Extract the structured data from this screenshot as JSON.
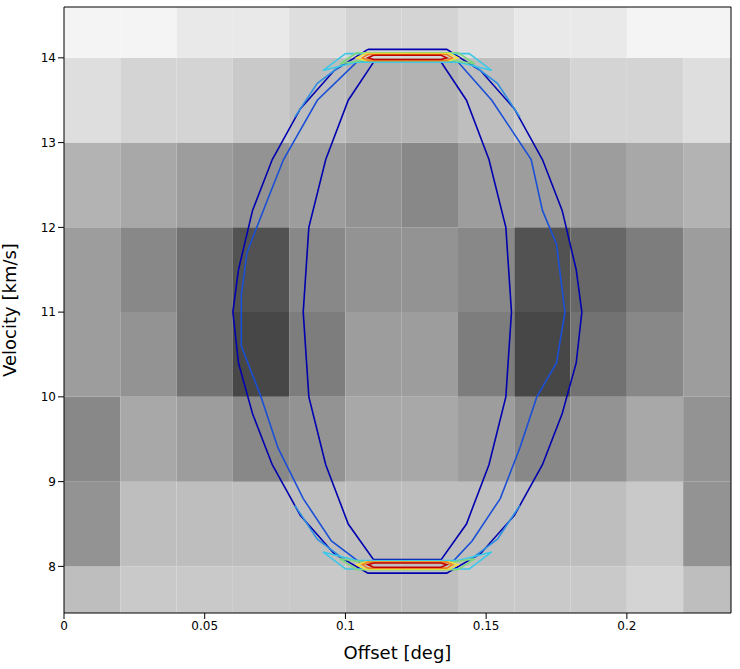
{
  "chart_data": {
    "type": "contour",
    "x_label": "Offset [deg]",
    "y_label": "Velocity [km/s]",
    "xlim": [
      0,
      0.237
    ],
    "ylim": [
      7.45,
      14.6
    ],
    "xticks": [
      0,
      0.05,
      0.1,
      0.15,
      0.2
    ],
    "yticks": [
      8,
      9,
      10,
      11,
      12,
      13,
      14
    ],
    "image": {
      "x_edges": [
        0,
        0.02,
        0.04,
        0.06,
        0.08,
        0.1,
        0.12,
        0.14,
        0.16,
        0.18,
        0.2,
        0.22,
        0.24
      ],
      "y_edges": [
        7,
        8,
        9,
        10,
        11,
        12,
        13,
        14,
        15
      ],
      "values": [
        [
          0.3,
          0.25,
          0.25,
          0.25,
          0.25,
          0.3,
          0.3,
          0.25,
          0.25,
          0.25,
          0.2,
          0.3
        ],
        [
          0.5,
          0.3,
          0.3,
          0.3,
          0.3,
          0.3,
          0.3,
          0.3,
          0.3,
          0.3,
          0.25,
          0.5
        ],
        [
          0.55,
          0.4,
          0.45,
          0.55,
          0.5,
          0.4,
          0.4,
          0.45,
          0.55,
          0.5,
          0.4,
          0.5
        ],
        [
          0.45,
          0.5,
          0.65,
          0.85,
          0.6,
          0.45,
          0.45,
          0.6,
          0.85,
          0.65,
          0.55,
          0.45
        ],
        [
          0.45,
          0.55,
          0.65,
          0.8,
          0.55,
          0.5,
          0.5,
          0.55,
          0.8,
          0.7,
          0.6,
          0.45
        ],
        [
          0.35,
          0.4,
          0.45,
          0.5,
          0.45,
          0.5,
          0.55,
          0.45,
          0.45,
          0.45,
          0.4,
          0.35
        ],
        [
          0.15,
          0.2,
          0.2,
          0.25,
          0.3,
          0.35,
          0.35,
          0.3,
          0.25,
          0.2,
          0.2,
          0.15
        ],
        [
          0.05,
          0.05,
          0.1,
          0.1,
          0.15,
          0.2,
          0.2,
          0.15,
          0.1,
          0.1,
          0.05,
          0.05
        ]
      ]
    },
    "contours": [
      {
        "color": "#0000b0",
        "segments": [
          [
            [
              0.108,
              14.1
            ],
            [
              0.136,
              14.1
            ],
            [
              0.148,
              13.85
            ],
            [
              0.16,
              13.4
            ],
            [
              0.17,
              12.8
            ],
            [
              0.177,
              12.2
            ],
            [
              0.182,
              11.5
            ],
            [
              0.184,
              11.0
            ],
            [
              0.182,
              10.4
            ],
            [
              0.177,
              9.8
            ],
            [
              0.17,
              9.2
            ],
            [
              0.16,
              8.6
            ],
            [
              0.148,
              8.15
            ],
            [
              0.136,
              7.92
            ],
            [
              0.108,
              7.92
            ],
            [
              0.096,
              8.15
            ],
            [
              0.084,
              8.6
            ],
            [
              0.074,
              9.2
            ],
            [
              0.067,
              9.8
            ],
            [
              0.062,
              10.4
            ],
            [
              0.06,
              11.0
            ],
            [
              0.062,
              11.5
            ],
            [
              0.067,
              12.2
            ],
            [
              0.074,
              12.8
            ],
            [
              0.084,
              13.4
            ],
            [
              0.096,
              13.85
            ],
            [
              0.108,
              14.1
            ]
          ],
          [
            [
              0.11,
              13.95
            ],
            [
              0.134,
              13.95
            ],
            [
              0.143,
              13.5
            ],
            [
              0.151,
              12.8
            ],
            [
              0.157,
              12.0
            ],
            [
              0.159,
              11.0
            ],
            [
              0.157,
              10.0
            ],
            [
              0.151,
              9.2
            ],
            [
              0.143,
              8.5
            ],
            [
              0.134,
              8.08
            ],
            [
              0.11,
              8.08
            ],
            [
              0.101,
              8.5
            ],
            [
              0.093,
              9.2
            ],
            [
              0.087,
              10.0
            ],
            [
              0.085,
              11.0
            ],
            [
              0.087,
              12.0
            ],
            [
              0.093,
              12.8
            ],
            [
              0.101,
              13.5
            ],
            [
              0.11,
              13.95
            ]
          ]
        ]
      },
      {
        "color": "#1a4fd6",
        "segments": [
          [
            [
              0.104,
              13.95
            ],
            [
              0.14,
              13.95
            ],
            [
              0.152,
              13.5
            ],
            [
              0.166,
              12.8
            ],
            [
              0.17,
              12.2
            ],
            [
              0.175,
              11.8
            ],
            [
              0.178,
              11.0
            ],
            [
              0.175,
              10.4
            ],
            [
              0.168,
              10.0
            ],
            [
              0.162,
              9.4
            ],
            [
              0.155,
              8.8
            ],
            [
              0.145,
              8.3
            ],
            [
              0.138,
              8.05
            ],
            [
              0.105,
              8.05
            ],
            [
              0.095,
              8.3
            ],
            [
              0.085,
              8.8
            ],
            [
              0.076,
              9.4
            ],
            [
              0.07,
              10.0
            ],
            [
              0.063,
              10.6
            ],
            [
              0.063,
              11.2
            ],
            [
              0.065,
              11.7
            ],
            [
              0.072,
              12.3
            ],
            [
              0.078,
              12.8
            ],
            [
              0.09,
              13.5
            ],
            [
              0.104,
              13.95
            ]
          ]
        ]
      },
      {
        "color": "#2f8fe0",
        "segments": [
          [
            [
              0.082,
              13.3
            ],
            [
              0.09,
              13.7
            ],
            [
              0.1,
              13.95
            ]
          ],
          [
            [
              0.162,
              13.3
            ],
            [
              0.154,
              13.7
            ],
            [
              0.144,
              13.95
            ]
          ],
          [
            [
              0.082,
              8.72
            ],
            [
              0.09,
              8.32
            ],
            [
              0.1,
              8.07
            ]
          ],
          [
            [
              0.162,
              8.72
            ],
            [
              0.154,
              8.32
            ],
            [
              0.144,
              8.07
            ]
          ]
        ]
      },
      {
        "color": "#3cc8e8",
        "segments": [
          [
            [
              0.1,
              14.05
            ],
            [
              0.144,
              14.05
            ],
            [
              0.152,
              13.85
            ],
            [
              0.14,
              13.95
            ],
            [
              0.104,
              13.95
            ],
            [
              0.092,
              13.85
            ],
            [
              0.1,
              14.05
            ]
          ],
          [
            [
              0.1,
              7.97
            ],
            [
              0.144,
              7.97
            ],
            [
              0.152,
              8.17
            ],
            [
              0.14,
              8.07
            ],
            [
              0.104,
              8.07
            ],
            [
              0.092,
              8.17
            ],
            [
              0.1,
              7.97
            ]
          ]
        ]
      },
      {
        "color": "#7fd67f",
        "segments": [
          [
            [
              0.104,
              14.06
            ],
            [
              0.14,
              14.06
            ],
            [
              0.146,
              13.93
            ],
            [
              0.138,
              13.97
            ],
            [
              0.106,
              13.97
            ],
            [
              0.098,
              13.93
            ],
            [
              0.104,
              14.06
            ]
          ],
          [
            [
              0.104,
              7.96
            ],
            [
              0.14,
              7.96
            ],
            [
              0.146,
              8.09
            ],
            [
              0.138,
              8.05
            ],
            [
              0.106,
              8.05
            ],
            [
              0.098,
              8.09
            ],
            [
              0.104,
              7.96
            ]
          ]
        ]
      },
      {
        "color": "#f0e040",
        "segments": [
          [
            [
              0.107,
              14.05
            ],
            [
              0.137,
              14.05
            ],
            [
              0.14,
              14.0
            ],
            [
              0.137,
              13.97
            ],
            [
              0.107,
              13.97
            ],
            [
              0.104,
              14.0
            ],
            [
              0.107,
              14.05
            ]
          ],
          [
            [
              0.107,
              7.97
            ],
            [
              0.137,
              7.97
            ],
            [
              0.14,
              8.02
            ],
            [
              0.137,
              8.05
            ],
            [
              0.107,
              8.05
            ],
            [
              0.104,
              8.02
            ],
            [
              0.107,
              7.97
            ]
          ]
        ]
      },
      {
        "color": "#f08020",
        "segments": [
          [
            [
              0.108,
              14.04
            ],
            [
              0.136,
              14.04
            ],
            [
              0.138,
              14.0
            ],
            [
              0.136,
              13.97
            ],
            [
              0.108,
              13.97
            ],
            [
              0.106,
              14.0
            ],
            [
              0.108,
              14.04
            ]
          ],
          [
            [
              0.108,
              7.98
            ],
            [
              0.136,
              7.98
            ],
            [
              0.138,
              8.02
            ],
            [
              0.136,
              8.05
            ],
            [
              0.108,
              8.05
            ],
            [
              0.106,
              8.02
            ],
            [
              0.108,
              7.98
            ]
          ]
        ]
      },
      {
        "color": "#c00000",
        "segments": [
          [
            [
              0.11,
              14.03
            ],
            [
              0.134,
              14.03
            ],
            [
              0.136,
              14.0
            ],
            [
              0.134,
              13.98
            ],
            [
              0.11,
              13.98
            ],
            [
              0.108,
              14.0
            ],
            [
              0.11,
              14.03
            ]
          ],
          [
            [
              0.11,
              7.99
            ],
            [
              0.134,
              7.99
            ],
            [
              0.136,
              8.02
            ],
            [
              0.134,
              8.04
            ],
            [
              0.11,
              8.04
            ],
            [
              0.108,
              8.02
            ],
            [
              0.11,
              7.99
            ]
          ]
        ]
      }
    ]
  }
}
